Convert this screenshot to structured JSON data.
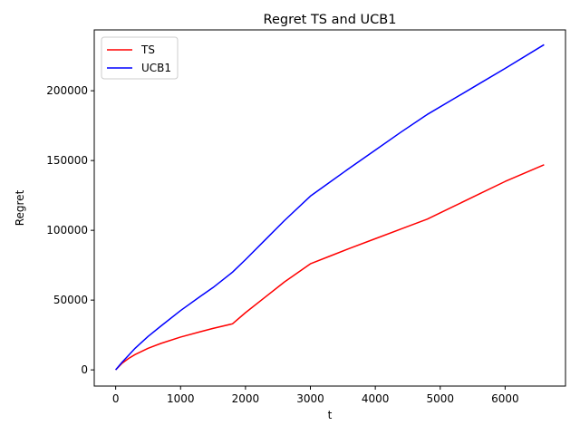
{
  "chart_data": {
    "type": "line",
    "title": "Regret TS and UCB1",
    "xlabel": "t",
    "ylabel": "Regret",
    "xlim": [
      -330,
      6930
    ],
    "ylim": [
      -11600,
      243600
    ],
    "xticks": [
      0,
      1000,
      2000,
      3000,
      4000,
      5000,
      6000
    ],
    "yticks": [
      0,
      50000,
      100000,
      150000,
      200000
    ],
    "grid": false,
    "legend": "top-left",
    "series": [
      {
        "name": "TS",
        "color": "#ff0000",
        "x": [
          0,
          100,
          200,
          300,
          500,
          700,
          1000,
          1300,
          1500,
          1800,
          2000,
          2300,
          2600,
          3000,
          3300,
          3600,
          4000,
          4400,
          4800,
          5200,
          5600,
          6000,
          6600
        ],
        "y": [
          0,
          4800,
          8200,
          11000,
          15500,
          19000,
          23500,
          27300,
          29700,
          33000,
          41000,
          52000,
          63000,
          76000,
          81500,
          87000,
          94000,
          101000,
          108000,
          117000,
          126000,
          135000,
          147000
        ]
      },
      {
        "name": "UCB1",
        "color": "#0000ff",
        "x": [
          0,
          100,
          200,
          300,
          500,
          700,
          1000,
          1300,
          1500,
          1800,
          2000,
          2300,
          2600,
          3000,
          3300,
          3600,
          4000,
          4400,
          4800,
          5200,
          5600,
          6000,
          6600
        ],
        "y": [
          0,
          5500,
          10500,
          15500,
          24000,
          31500,
          42500,
          52500,
          59000,
          70000,
          79000,
          93000,
          107000,
          124500,
          134500,
          144500,
          157500,
          170500,
          183000,
          194000,
          205000,
          216000,
          233000
        ]
      }
    ]
  }
}
